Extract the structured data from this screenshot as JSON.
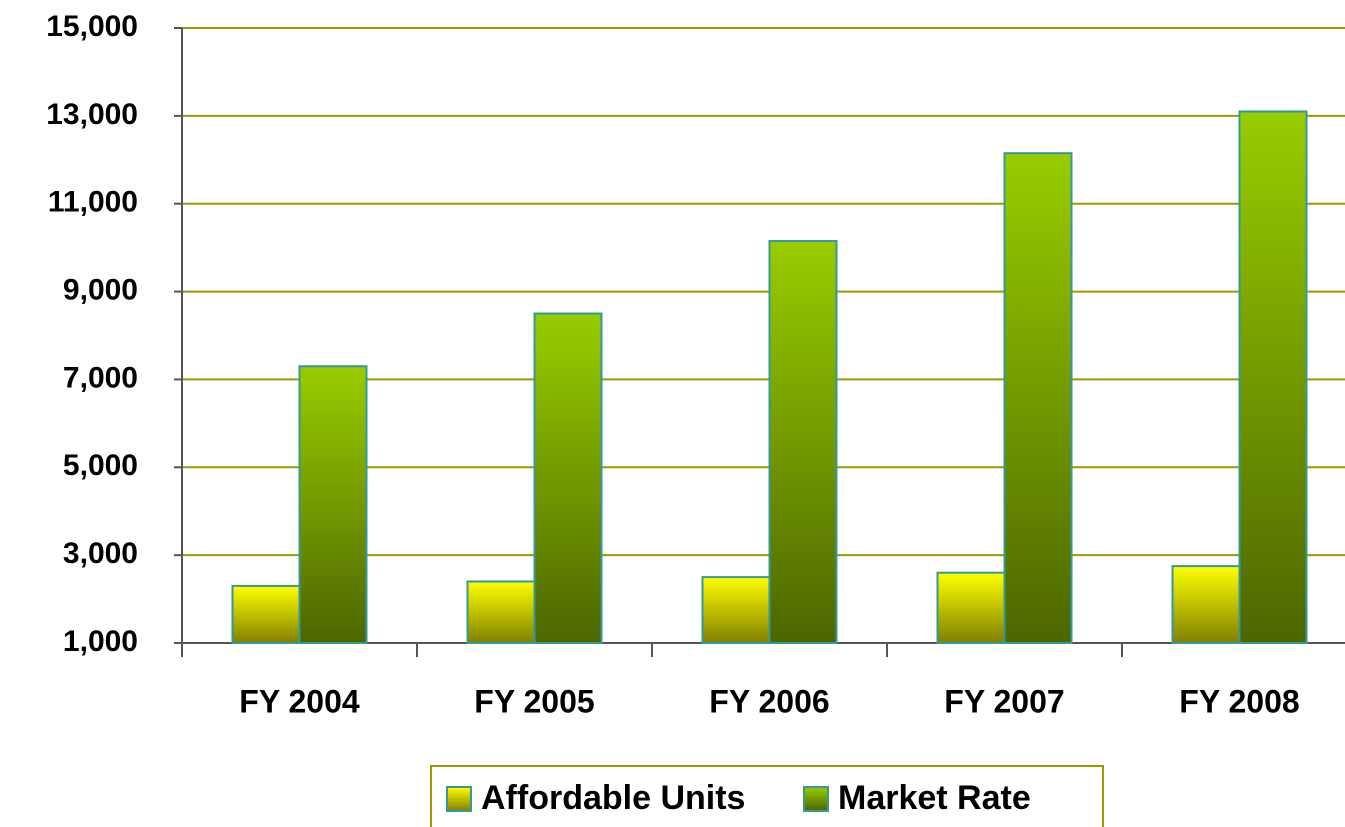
{
  "chart_data": {
    "type": "bar",
    "categories": [
      "FY 2004",
      "FY 2005",
      "FY 2006",
      "FY 2007",
      "FY 2008"
    ],
    "series": [
      {
        "name": "Affordable Units",
        "color": "#ffff00",
        "values": [
          2300,
          2400,
          2500,
          2600,
          2750
        ]
      },
      {
        "name": "Market Rate",
        "color": "#99cc00",
        "values": [
          7300,
          8500,
          10150,
          12150,
          13100
        ]
      }
    ],
    "ylim": [
      1000,
      15000
    ],
    "yticks": [
      {
        "value": 1000,
        "label": "1,000"
      },
      {
        "value": 3000,
        "label": "3,000"
      },
      {
        "value": 5000,
        "label": "5,000"
      },
      {
        "value": 7000,
        "label": "7,000"
      },
      {
        "value": 9000,
        "label": "9,000"
      },
      {
        "value": 11000,
        "label": "11,000"
      },
      {
        "value": 13000,
        "label": "13,000"
      },
      {
        "value": 15000,
        "label": "15,000"
      }
    ],
    "grid": true,
    "legend": "bottom"
  }
}
